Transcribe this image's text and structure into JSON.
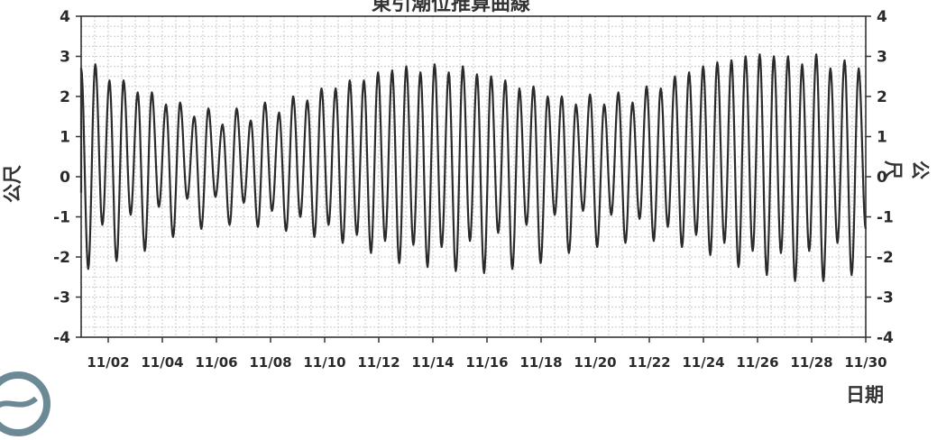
{
  "chart_data": {
    "type": "line",
    "title": "東引潮位推算曲線",
    "ylabel_left": "公尺",
    "ylabel_right": "公尺",
    "xlabel": "日期",
    "ylim": [
      -4,
      4
    ],
    "yticks": [
      -4,
      -3,
      -2,
      -1,
      0,
      1,
      2,
      3,
      4
    ],
    "x_tick_labels": [
      "11/02",
      "11/04",
      "11/06",
      "11/08",
      "11/10",
      "11/12",
      "11/14",
      "11/16",
      "11/18",
      "11/20",
      "11/22",
      "11/24",
      "11/26",
      "11/28",
      "11/30"
    ],
    "x_range_days": [
      1,
      30
    ],
    "grid": true,
    "series": [
      {
        "values_high": [
          2.7,
          2.8,
          2.4,
          2.4,
          2.1,
          2.1,
          1.8,
          1.85,
          1.5,
          1.7,
          1.3,
          1.7,
          1.4,
          1.85,
          1.6,
          2.0,
          1.9,
          2.2,
          2.2,
          2.4,
          2.4,
          2.6,
          2.65,
          2.75,
          2.6,
          2.8,
          2.6,
          2.75,
          2.55,
          2.5,
          2.4,
          2.2,
          2.25,
          2.0,
          2.0,
          1.8,
          2.05,
          1.8,
          2.1,
          1.85,
          2.25,
          2.2,
          2.5,
          2.6,
          2.75,
          2.85,
          2.9,
          3.0,
          3.05,
          3.0,
          3.0,
          2.8,
          3.05,
          2.7,
          2.9,
          2.7
        ],
        "values_low": [
          -2.3,
          -1.2,
          -2.1,
          -0.95,
          -1.85,
          -0.75,
          -1.5,
          -0.55,
          -1.3,
          -0.5,
          -1.2,
          -0.65,
          -1.25,
          -0.85,
          -1.35,
          -1.0,
          -1.5,
          -1.2,
          -1.65,
          -1.45,
          -1.9,
          -1.6,
          -2.15,
          -1.7,
          -2.25,
          -1.75,
          -2.35,
          -1.6,
          -2.4,
          -1.4,
          -2.3,
          -1.2,
          -2.15,
          -0.95,
          -1.9,
          -0.85,
          -1.75,
          -0.95,
          -1.65,
          -1.05,
          -1.6,
          -1.25,
          -1.75,
          -1.45,
          -1.95,
          -1.65,
          -2.25,
          -1.85,
          -2.45,
          -1.9,
          -2.6,
          -1.85,
          -2.6,
          -1.65,
          -2.45,
          -1.3
        ]
      }
    ]
  }
}
